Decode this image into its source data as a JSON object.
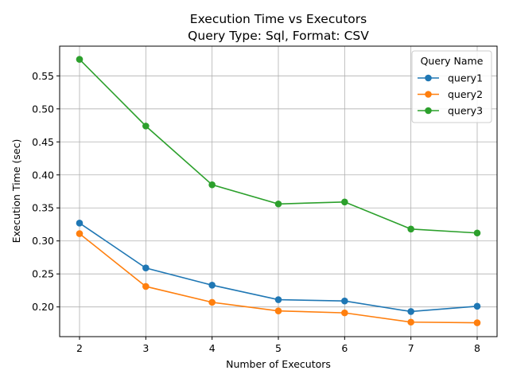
{
  "chart_data": {
    "type": "line",
    "title": "Execution Time vs Executors",
    "subtitle": "Query Type: Sql, Format: CSV",
    "xlabel": "Number of Executors",
    "ylabel": "Execution Time (sec)",
    "x": [
      2,
      3,
      4,
      5,
      6,
      7,
      8
    ],
    "xlim": [
      1.7,
      8.3
    ],
    "ylim": [
      0.155,
      0.595
    ],
    "xticks": [
      "2",
      "3",
      "4",
      "5",
      "6",
      "7",
      "8"
    ],
    "yticks": [
      "0.20",
      "0.25",
      "0.30",
      "0.35",
      "0.40",
      "0.45",
      "0.50",
      "0.55"
    ],
    "grid": true,
    "legend": {
      "title": "Query Name",
      "placement": "top-right"
    },
    "series": [
      {
        "name": "query1",
        "color": "#1f77b4",
        "values": [
          0.327,
          0.259,
          0.233,
          0.211,
          0.209,
          0.193,
          0.201
        ]
      },
      {
        "name": "query2",
        "color": "#ff7f0e",
        "values": [
          0.311,
          0.231,
          0.207,
          0.194,
          0.191,
          0.177,
          0.176
        ]
      },
      {
        "name": "query3",
        "color": "#2ca02c",
        "values": [
          0.575,
          0.474,
          0.385,
          0.356,
          0.359,
          0.318,
          0.312
        ]
      }
    ]
  }
}
